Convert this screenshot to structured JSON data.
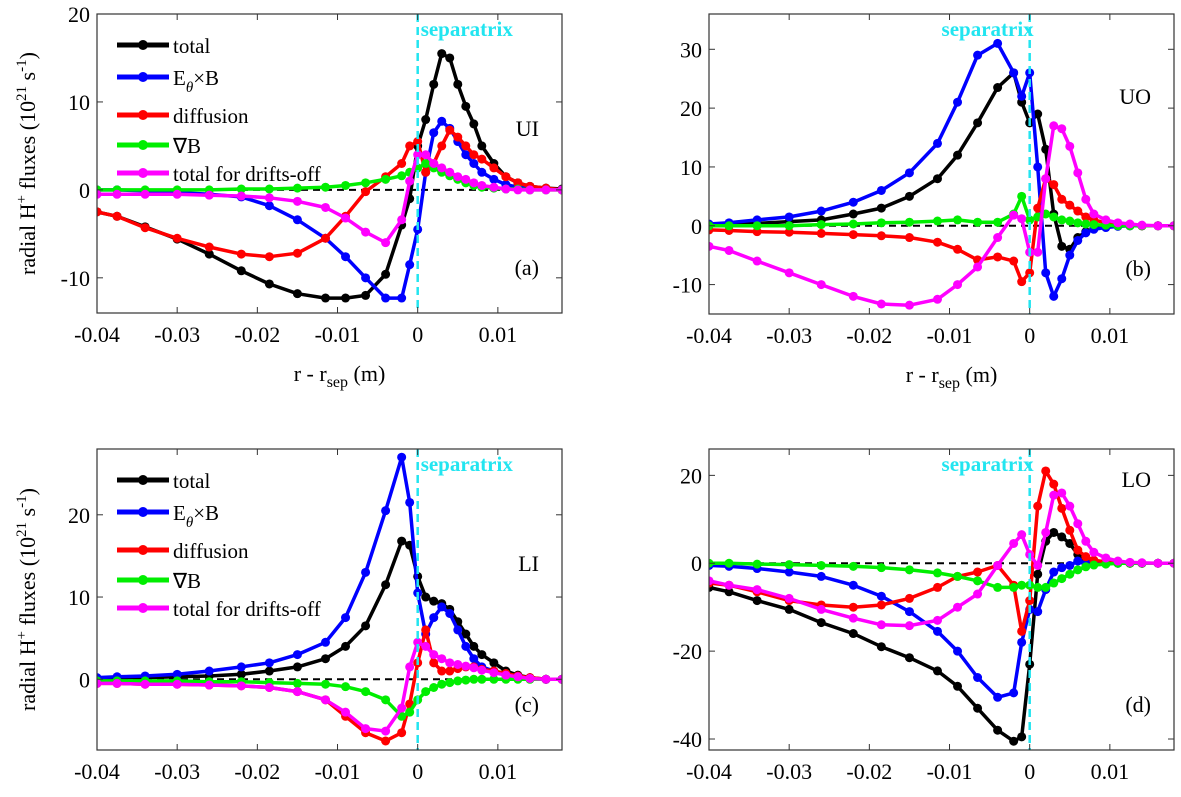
{
  "chart_data": [
    {
      "type": "line",
      "panel_label": "(a)",
      "region_label": "UI",
      "separatrix_label": "separatrix",
      "xlabel": "r - r_sep (m)",
      "ylabel": "radial H+ fluxes (10^21 s^-1)",
      "xlim": [
        -0.04,
        0.018
      ],
      "ylim": [
        -14,
        20
      ],
      "xticks": [
        -0.04,
        -0.03,
        -0.02,
        -0.01,
        0,
        0.01
      ],
      "xtick_labels": [
        "-0.04",
        "-0.03",
        "-0.02",
        "-0.01",
        "0",
        "0.01"
      ],
      "yticks": [
        -10,
        0,
        10,
        20
      ],
      "ytick_labels": [
        "-10",
        "0",
        "10",
        "20"
      ],
      "legend": "top-left",
      "x": [
        -0.04,
        -0.0375,
        -0.034,
        -0.03,
        -0.026,
        -0.022,
        -0.0185,
        -0.015,
        -0.0115,
        -0.009,
        -0.0065,
        -0.004,
        -0.002,
        -0.001,
        0,
        0.001,
        0.002,
        0.003,
        0.004,
        0.005,
        0.006,
        0.007,
        0.008,
        0.0095,
        0.011,
        0.0125,
        0.014,
        0.016,
        0.018
      ],
      "series": [
        {
          "name": "total",
          "color": "#000000",
          "values": [
            -2.5,
            -3,
            -4.2,
            -5.6,
            -7.3,
            -9.2,
            -10.7,
            -11.8,
            -12.3,
            -12.3,
            -12,
            -9.6,
            -4,
            -1,
            5,
            8,
            12,
            15.5,
            15,
            12,
            9.5,
            7.5,
            5,
            3,
            1.5,
            0.8,
            0.4,
            0.2,
            0.1
          ]
        },
        {
          "name": "E_θ×B",
          "color": "#0000ff",
          "values": [
            0,
            0,
            -0.1,
            -0.3,
            -0.5,
            -0.8,
            -1.8,
            -3.4,
            -5.5,
            -7.6,
            -10,
            -12.3,
            -12.3,
            -8.5,
            -4.5,
            2,
            6.5,
            7.8,
            7,
            5.5,
            4,
            3,
            2,
            1.2,
            0.6,
            0.3,
            0.2,
            0.1,
            0
          ]
        },
        {
          "name": "diffusion",
          "color": "#ff0000",
          "values": [
            -2.5,
            -3,
            -4.3,
            -5.5,
            -6.5,
            -7.3,
            -7.6,
            -7.2,
            -5.5,
            -3,
            -0.2,
            1.5,
            3,
            5,
            5.5,
            2,
            3,
            5,
            6.8,
            6,
            5,
            4,
            3.5,
            2.5,
            1.5,
            0.8,
            0.4,
            0.2,
            0
          ]
        },
        {
          "name": "∇B",
          "color": "#00ee00",
          "values": [
            0,
            0,
            0,
            0,
            0,
            0.1,
            0.1,
            0.2,
            0.3,
            0.5,
            0.8,
            1.2,
            1.6,
            2,
            2.5,
            3,
            2.5,
            2,
            1.6,
            1.2,
            0.8,
            0.5,
            0.3,
            0.2,
            0.1,
            0.1,
            0,
            0,
            0
          ]
        },
        {
          "name": "total for drifts-off",
          "color": "#ff00ff",
          "values": [
            -0.5,
            -0.5,
            -0.5,
            -0.5,
            -0.6,
            -0.7,
            -0.9,
            -1.3,
            -2,
            -3.2,
            -4.8,
            -6,
            -3.4,
            1,
            4,
            4,
            3,
            2.5,
            2,
            1.5,
            1.2,
            0.8,
            0.5,
            0.3,
            0.1,
            0,
            0,
            0,
            0
          ]
        }
      ]
    },
    {
      "type": "line",
      "panel_label": "(b)",
      "region_label": "UO",
      "separatrix_label": "separatrix",
      "xlabel": "r - r_sep (m)",
      "ylabel": "",
      "xlim": [
        -0.04,
        0.018
      ],
      "ylim": [
        -15,
        36
      ],
      "xticks": [
        -0.04,
        -0.03,
        -0.02,
        -0.01,
        0,
        0.01
      ],
      "xtick_labels": [
        "-0.04",
        "-0.03",
        "-0.02",
        "-0.01",
        "0",
        "0.01"
      ],
      "yticks": [
        -10,
        0,
        10,
        20,
        30
      ],
      "ytick_labels": [
        "-10",
        "0",
        "10",
        "20",
        "30"
      ],
      "x": [
        -0.04,
        -0.0375,
        -0.034,
        -0.03,
        -0.026,
        -0.022,
        -0.0185,
        -0.015,
        -0.0115,
        -0.009,
        -0.0065,
        -0.004,
        -0.002,
        -0.001,
        0,
        0.001,
        0.002,
        0.003,
        0.004,
        0.005,
        0.006,
        0.007,
        0.008,
        0.0095,
        0.011,
        0.0125,
        0.014,
        0.016,
        0.018
      ],
      "series": [
        {
          "name": "total",
          "color": "#000000",
          "values": [
            0,
            0.2,
            0.4,
            0.7,
            1,
            2,
            3,
            5,
            8,
            12,
            17.5,
            23.5,
            26,
            21,
            17.5,
            19,
            13,
            2,
            -3.5,
            -4,
            -2,
            -1,
            -0.5,
            -0.2,
            0,
            0,
            0,
            0,
            0
          ]
        },
        {
          "name": "E_θ×B",
          "color": "#0000ff",
          "values": [
            0.3,
            0.5,
            1,
            1.5,
            2.5,
            4,
            6,
            9,
            14,
            21,
            29,
            31,
            26,
            22,
            26,
            10,
            -8,
            -12,
            -9,
            -5,
            -2.5,
            -1.2,
            -0.6,
            -0.3,
            -0.1,
            0,
            0,
            0,
            0
          ]
        },
        {
          "name": "diffusion",
          "color": "#ff0000",
          "values": [
            -0.7,
            -0.8,
            -1,
            -1.1,
            -1.3,
            -1.5,
            -1.7,
            -2,
            -2.8,
            -4,
            -5.8,
            -5.3,
            -6,
            -9.5,
            -8,
            3,
            8,
            7,
            4.5,
            3.5,
            2.5,
            1.5,
            1,
            0.5,
            0.2,
            0.1,
            0,
            0,
            0
          ]
        },
        {
          "name": "∇B",
          "color": "#00ee00",
          "values": [
            0,
            0,
            0,
            0,
            0.2,
            0.3,
            0.5,
            0.6,
            0.8,
            1,
            0.6,
            0.6,
            2,
            5,
            1,
            1.5,
            2,
            1.5,
            1,
            0.8,
            0.5,
            0.3,
            0.2,
            0.1,
            0,
            0,
            0,
            0,
            0
          ]
        },
        {
          "name": "total for drifts-off",
          "color": "#ff00ff",
          "values": [
            -3.5,
            -4.2,
            -6,
            -8,
            -10,
            -12,
            -13.3,
            -13.5,
            -12.5,
            -10,
            -7,
            -2,
            1.8,
            1.2,
            -4.5,
            -4.5,
            8,
            17,
            16.5,
            13.5,
            9,
            4.5,
            2,
            1,
            0.5,
            0.3,
            0.1,
            0,
            0
          ]
        }
      ]
    },
    {
      "type": "line",
      "panel_label": "(c)",
      "region_label": "LI",
      "separatrix_label": "separatrix",
      "xlabel": "",
      "ylabel": "radial H+ fluxes (10^21 s^-1)",
      "xlim": [
        -0.04,
        0.018
      ],
      "ylim": [
        -8.6,
        28
      ],
      "xticks": [
        -0.04,
        -0.03,
        -0.02,
        -0.01,
        0,
        0.01
      ],
      "xtick_labels": [
        "-0.04",
        "-0.03",
        "-0.02",
        "-0.01",
        "0",
        "0.01"
      ],
      "yticks": [
        0,
        10,
        20
      ],
      "ytick_labels": [
        "0",
        "10",
        "20"
      ],
      "legend": "top-left",
      "x": [
        -0.04,
        -0.0375,
        -0.034,
        -0.03,
        -0.026,
        -0.022,
        -0.0185,
        -0.015,
        -0.0115,
        -0.009,
        -0.0065,
        -0.004,
        -0.002,
        -0.001,
        0,
        0.001,
        0.002,
        0.003,
        0.004,
        0.005,
        0.006,
        0.007,
        0.008,
        0.0095,
        0.011,
        0.0125,
        0.014,
        0.016,
        0.018
      ],
      "series": [
        {
          "name": "total",
          "color": "#000000",
          "values": [
            0.1,
            0.2,
            0.2,
            0.3,
            0.4,
            0.6,
            1,
            1.5,
            2.5,
            4,
            6.5,
            11.5,
            16.8,
            16.3,
            12.5,
            10,
            9.5,
            9.2,
            8.5,
            7,
            5.5,
            4,
            3,
            2,
            1,
            0.5,
            0.2,
            0,
            0
          ]
        },
        {
          "name": "E_θ×B",
          "color": "#0000ff",
          "values": [
            0.2,
            0.3,
            0.4,
            0.6,
            1,
            1.5,
            2,
            3,
            4.5,
            7.5,
            13,
            20.5,
            27,
            21.5,
            10.5,
            5.5,
            7.5,
            8.8,
            8,
            6,
            4,
            2.5,
            1.5,
            1,
            0.5,
            0.3,
            0.1,
            0,
            0
          ]
        },
        {
          "name": "diffusion",
          "color": "#ff0000",
          "values": [
            -0.5,
            -0.5,
            -0.6,
            -0.6,
            -0.7,
            -0.8,
            -1,
            -1.5,
            -2.5,
            -4.5,
            -6.5,
            -7.5,
            -6.5,
            -3,
            2,
            6,
            2,
            1,
            1,
            1.3,
            1.5,
            1.5,
            1.2,
            1,
            0.7,
            0.4,
            0.2,
            0,
            0
          ]
        },
        {
          "name": "∇B",
          "color": "#00ee00",
          "values": [
            -0.2,
            -0.2,
            -0.2,
            -0.2,
            -0.3,
            -0.3,
            -0.4,
            -0.5,
            -0.6,
            -0.9,
            -1.5,
            -2.5,
            -4.5,
            -4,
            -2.5,
            -1.5,
            -1,
            -0.6,
            -0.4,
            -0.2,
            -0.1,
            0,
            0,
            0,
            0,
            0,
            0,
            0,
            0
          ]
        },
        {
          "name": "total for drifts-off",
          "color": "#ff00ff",
          "values": [
            -0.5,
            -0.5,
            -0.6,
            -0.6,
            -0.7,
            -0.8,
            -1,
            -1.5,
            -2.5,
            -4,
            -6,
            -6.3,
            -3.5,
            1.5,
            4.5,
            4,
            3,
            2.5,
            2,
            1.8,
            1.6,
            1.4,
            1.1,
            0.8,
            0.5,
            0.3,
            0.1,
            0,
            0
          ]
        }
      ]
    },
    {
      "type": "line",
      "panel_label": "(d)",
      "region_label": "LO",
      "separatrix_label": "separatrix",
      "xlabel": "",
      "ylabel": "",
      "xlim": [
        -0.04,
        0.018
      ],
      "ylim": [
        -42.5,
        26
      ],
      "xticks": [
        -0.04,
        -0.03,
        -0.02,
        -0.01,
        0,
        0.01
      ],
      "xtick_labels": [
        "-0.04",
        "-0.03",
        "-0.02",
        "-0.01",
        "0",
        "0.01"
      ],
      "yticks": [
        -40,
        -20,
        0,
        20
      ],
      "ytick_labels": [
        "-40",
        "-20",
        "0",
        "20"
      ],
      "x": [
        -0.04,
        -0.0375,
        -0.034,
        -0.03,
        -0.026,
        -0.022,
        -0.0185,
        -0.015,
        -0.0115,
        -0.009,
        -0.0065,
        -0.004,
        -0.002,
        -0.001,
        0,
        0.001,
        0.002,
        0.003,
        0.004,
        0.005,
        0.006,
        0.007,
        0.008,
        0.0095,
        0.011,
        0.0125,
        0.014,
        0.016,
        0.018
      ],
      "series": [
        {
          "name": "total",
          "color": "#000000",
          "values": [
            -5.5,
            -6.5,
            -8.5,
            -10.5,
            -13.5,
            -16,
            -19,
            -21.5,
            -24.5,
            -28,
            -33,
            -38,
            -40.5,
            -39.5,
            -23,
            -2.5,
            5,
            7,
            6,
            4.5,
            2,
            1,
            0.3,
            0,
            0,
            0,
            0,
            0,
            0
          ]
        },
        {
          "name": "E_θ×B",
          "color": "#0000ff",
          "values": [
            -0.5,
            -0.7,
            -1.2,
            -2,
            -3,
            -5,
            -7.5,
            -11,
            -15.5,
            -20,
            -26,
            -30.5,
            -29.5,
            -18,
            -10.5,
            -11,
            -6,
            -2,
            -1,
            -0.5,
            0.5,
            0,
            0,
            0,
            0,
            0,
            0,
            0,
            0
          ]
        },
        {
          "name": "diffusion",
          "color": "#ff0000",
          "values": [
            -4.5,
            -5,
            -6.5,
            -8.5,
            -9.5,
            -10,
            -9.5,
            -8,
            -5.5,
            -3,
            -2,
            -0.5,
            -5,
            -15.5,
            -8.5,
            13,
            21,
            18,
            12.5,
            7.5,
            3,
            1.5,
            0.7,
            0.3,
            0.1,
            0,
            0,
            0,
            0
          ]
        },
        {
          "name": "∇B",
          "color": "#00ee00",
          "values": [
            0,
            0,
            -0.2,
            -0.3,
            -0.5,
            -0.7,
            -1,
            -1.5,
            -2.2,
            -3,
            -4,
            -5.5,
            -5.5,
            -5,
            -5,
            -5.5,
            -5.5,
            -4.5,
            -3.5,
            -2.5,
            -1.5,
            -0.8,
            -0.4,
            -0.2,
            0,
            0,
            0,
            0,
            0
          ]
        },
        {
          "name": "total for drifts-off",
          "color": "#ff00ff",
          "values": [
            -4,
            -5,
            -6,
            -8,
            -10.5,
            -12.5,
            -14,
            -14.2,
            -13,
            -10,
            -7,
            -0.5,
            4.5,
            6.5,
            2,
            -0.5,
            7,
            15.5,
            16,
            13,
            9,
            5,
            2.5,
            1.2,
            0.5,
            0.2,
            0.1,
            0,
            0
          ]
        }
      ]
    }
  ]
}
